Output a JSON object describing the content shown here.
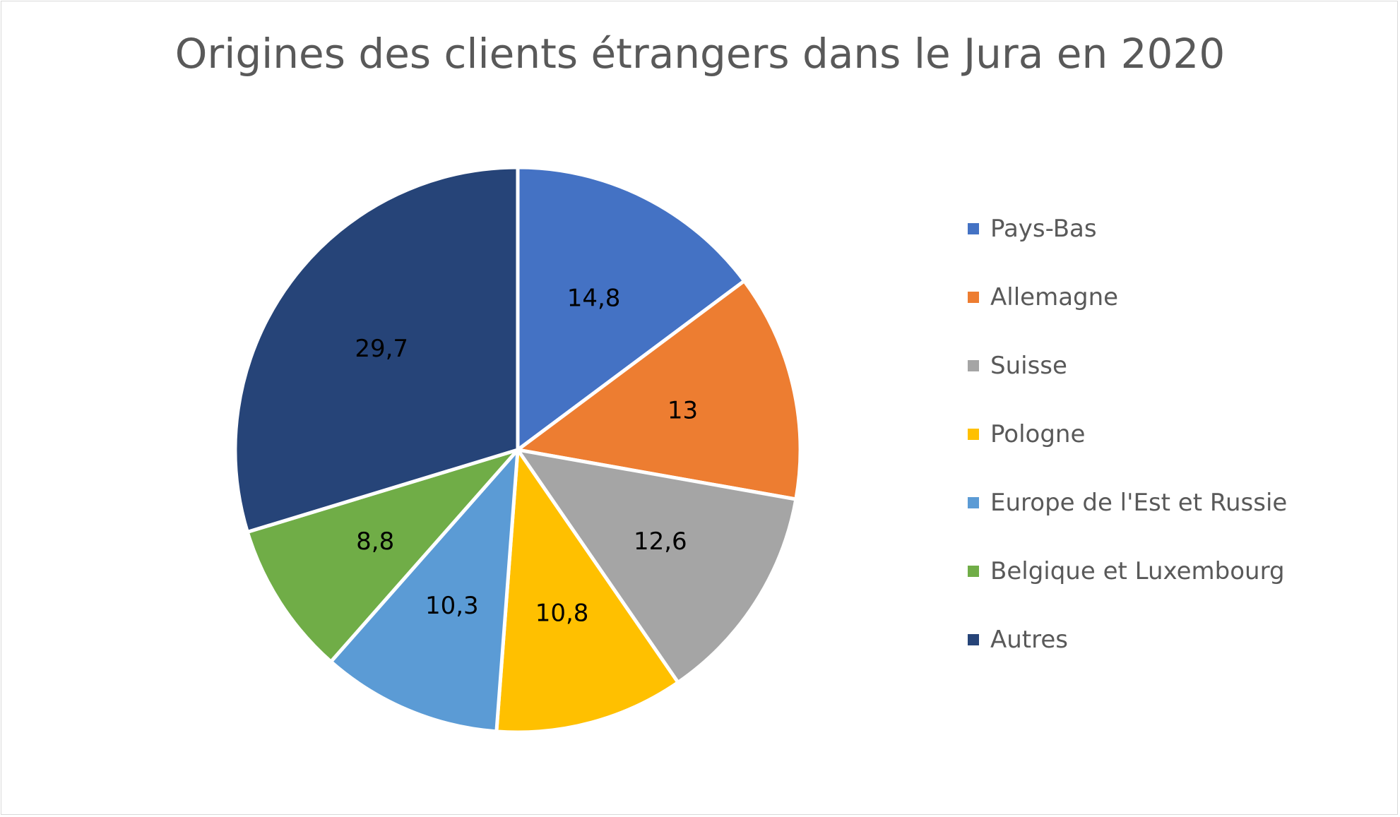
{
  "chart_data": {
    "type": "pie",
    "title": "Origines des clients étrangers dans le Jura en 2020",
    "categories": [
      "Pays-Bas",
      "Allemagne",
      "Suisse",
      "Pologne",
      "Europe de l'Est et Russie",
      "Belgique et Luxembourg",
      "Autres"
    ],
    "values": [
      14.8,
      13,
      12.6,
      10.8,
      10.3,
      8.8,
      29.7
    ],
    "data_labels": [
      "14,8",
      "13",
      "12,6",
      "10,8",
      "10,3",
      "8,8",
      "29,7"
    ],
    "colors": [
      "#4472C4",
      "#ED7D31",
      "#A5A5A5",
      "#FFC000",
      "#5B9BD5",
      "#70AD47",
      "#264478"
    ],
    "legend_position": "right",
    "start_angle": "12 o'clock",
    "direction": "clockwise"
  }
}
